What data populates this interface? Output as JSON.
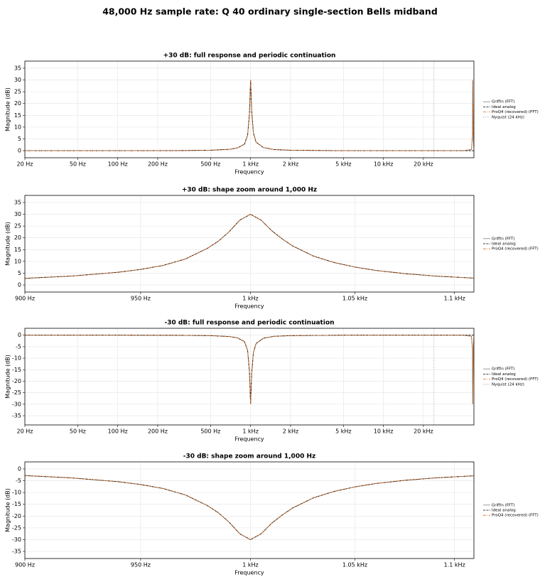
{
  "title": "48,000 Hz sample rate: Q 40 ordinary single-section Bells midband",
  "chart_data": [
    {
      "type": "line",
      "title": "+30 dB: full response and periodic continuation",
      "xlabel": "Frequency",
      "ylabel": "Magnitude (dB)",
      "xscale": "log",
      "grid": true,
      "legend": "outside right",
      "xlim": [
        20,
        48000
      ],
      "xticks": [
        {
          "value": 20,
          "label": "20 Hz"
        },
        {
          "value": 50,
          "label": "50 Hz"
        },
        {
          "value": 100,
          "label": "100 Hz"
        },
        {
          "value": 200,
          "label": "200 Hz"
        },
        {
          "value": 500,
          "label": "500 Hz"
        },
        {
          "value": 1000,
          "label": "1 kHz"
        },
        {
          "value": 2000,
          "label": "2 kHz"
        },
        {
          "value": 5000,
          "label": "5 kHz"
        },
        {
          "value": 10000,
          "label": "10 kHz"
        },
        {
          "value": 20000,
          "label": "20 kHz"
        }
      ],
      "ylim": [
        -3,
        38
      ],
      "yticks": [
        0,
        5,
        10,
        15,
        20,
        25,
        30,
        35
      ],
      "x": [
        20,
        100,
        300,
        500,
        700,
        800,
        900,
        950,
        980,
        990,
        1000,
        1010,
        1020,
        1050,
        1100,
        1250,
        1500,
        2000,
        5000,
        24000,
        40000,
        46000,
        46800,
        47000,
        47500,
        48000
      ],
      "series": [
        {
          "name": "Griffin (FFT)",
          "color": "#7f7f7f",
          "style": "solid",
          "values": [
            0,
            0,
            0.05,
            0.2,
            0.6,
            1.2,
            2.8,
            6.6,
            15.5,
            22.5,
            30,
            23,
            16.5,
            7.6,
            3.6,
            1.3,
            0.5,
            0.2,
            0,
            0,
            0,
            0.5,
            6,
            30,
            5,
            1
          ]
        },
        {
          "name": "Ideal analog",
          "color": "#000000",
          "style": "dashed",
          "values": [
            0,
            0,
            0.05,
            0.2,
            0.6,
            1.2,
            2.8,
            6.6,
            15.5,
            22.5,
            30,
            23,
            16.5,
            7.6,
            3.6,
            1.3,
            0.5,
            0.2,
            0,
            0,
            0,
            0,
            0,
            0,
            0,
            0
          ]
        },
        {
          "name": "ProQ4 (recovered) (FFT)",
          "color": "#d2691e",
          "style": "dashdot",
          "values": [
            0,
            0,
            0.05,
            0.2,
            0.6,
            1.2,
            2.8,
            6.6,
            15.5,
            22.5,
            30,
            23,
            16.5,
            7.6,
            3.6,
            1.3,
            0.5,
            0.2,
            0,
            0,
            0,
            0.5,
            6,
            30,
            5,
            1
          ]
        }
      ],
      "vlines": [
        {
          "name": "Nyquist (24 kHz)",
          "x": 24000,
          "color": "#999999",
          "style": "dotted"
        }
      ]
    },
    {
      "type": "line",
      "title": "+30 dB: shape zoom around 1,000 Hz",
      "xlabel": "Frequency",
      "ylabel": "Magnitude (dB)",
      "xscale": "log",
      "grid": true,
      "legend": "outside right",
      "xlim": [
        900,
        1110
      ],
      "xticks": [
        {
          "value": 900,
          "label": "900 Hz"
        },
        {
          "value": 950,
          "label": "950 Hz"
        },
        {
          "value": 1000,
          "label": "1 kHz"
        },
        {
          "value": 1050,
          "label": "1.05 kHz"
        },
        {
          "value": 1100,
          "label": "1.1 kHz"
        }
      ],
      "ylim": [
        -3,
        38
      ],
      "yticks": [
        0,
        5,
        10,
        15,
        20,
        25,
        30,
        35
      ],
      "x": [
        900,
        920,
        940,
        950,
        960,
        970,
        980,
        985,
        990,
        995,
        1000,
        1005,
        1010,
        1015,
        1020,
        1030,
        1040,
        1050,
        1060,
        1075,
        1090,
        1110
      ],
      "series": [
        {
          "name": "Griffin (FFT)",
          "color": "#7f7f7f",
          "style": "solid",
          "values": [
            2.8,
            3.8,
            5.4,
            6.6,
            8.3,
            11,
            15.5,
            18.5,
            22.5,
            27.5,
            30,
            27.5,
            23,
            19.5,
            16.5,
            12.2,
            9.5,
            7.6,
            6.2,
            4.8,
            3.8,
            2.9
          ]
        },
        {
          "name": "Ideal analog",
          "color": "#000000",
          "style": "dashed",
          "values": [
            2.8,
            3.8,
            5.4,
            6.6,
            8.3,
            11,
            15.5,
            18.5,
            22.5,
            27.5,
            30,
            27.5,
            23,
            19.5,
            16.5,
            12.2,
            9.5,
            7.6,
            6.2,
            4.8,
            3.8,
            2.9
          ]
        },
        {
          "name": "ProQ4 (recovered) (FFT)",
          "color": "#d2691e",
          "style": "dashdot",
          "values": [
            2.8,
            3.8,
            5.4,
            6.6,
            8.3,
            11,
            15.5,
            18.5,
            22.5,
            27.5,
            30,
            27.5,
            23,
            19.5,
            16.5,
            12.2,
            9.5,
            7.6,
            6.2,
            4.8,
            3.8,
            2.9
          ]
        }
      ]
    },
    {
      "type": "line",
      "title": "-30 dB: full response and periodic continuation",
      "xlabel": "Frequency",
      "ylabel": "Magnitude (dB)",
      "xscale": "log",
      "grid": true,
      "legend": "outside right",
      "xlim": [
        20,
        48000
      ],
      "xticks": [
        {
          "value": 20,
          "label": "20 Hz"
        },
        {
          "value": 50,
          "label": "50 Hz"
        },
        {
          "value": 100,
          "label": "100 Hz"
        },
        {
          "value": 200,
          "label": "200 Hz"
        },
        {
          "value": 500,
          "label": "500 Hz"
        },
        {
          "value": 1000,
          "label": "1 kHz"
        },
        {
          "value": 2000,
          "label": "2 kHz"
        },
        {
          "value": 5000,
          "label": "5 kHz"
        },
        {
          "value": 10000,
          "label": "10 kHz"
        },
        {
          "value": 20000,
          "label": "20 kHz"
        }
      ],
      "ylim": [
        -39,
        3
      ],
      "yticks": [
        0,
        -5,
        -10,
        -15,
        -20,
        -25,
        -30,
        -35
      ],
      "x": [
        20,
        100,
        300,
        500,
        700,
        800,
        900,
        950,
        980,
        990,
        1000,
        1010,
        1020,
        1050,
        1100,
        1250,
        1500,
        2000,
        5000,
        24000,
        40000,
        46000,
        46800,
        47000,
        47500,
        48000
      ],
      "series": [
        {
          "name": "Griffin (FFT)",
          "color": "#7f7f7f",
          "style": "solid",
          "values": [
            0,
            0,
            -0.05,
            -0.2,
            -0.6,
            -1.2,
            -2.8,
            -6.6,
            -15.5,
            -22.5,
            -30,
            -23,
            -16.5,
            -7.6,
            -3.6,
            -1.3,
            -0.5,
            -0.2,
            0,
            0,
            0,
            -0.5,
            -6,
            -30,
            -5,
            -1
          ]
        },
        {
          "name": "Ideal analog",
          "color": "#000000",
          "style": "dashed",
          "values": [
            0,
            0,
            -0.05,
            -0.2,
            -0.6,
            -1.2,
            -2.8,
            -6.6,
            -15.5,
            -22.5,
            -30,
            -23,
            -16.5,
            -7.6,
            -3.6,
            -1.3,
            -0.5,
            -0.2,
            0,
            0,
            0,
            0,
            0,
            0,
            0,
            0
          ]
        },
        {
          "name": "ProQ4 (recovered) (FFT)",
          "color": "#d2691e",
          "style": "dashdot",
          "values": [
            0,
            0,
            -0.05,
            -0.2,
            -0.6,
            -1.2,
            -2.8,
            -6.6,
            -15.5,
            -22.5,
            -30,
            -23,
            -16.5,
            -7.6,
            -3.6,
            -1.3,
            -0.5,
            -0.2,
            0,
            0,
            0,
            -0.5,
            -6,
            -30,
            -5,
            -1
          ]
        }
      ],
      "vlines": [
        {
          "name": "Nyquist (24 kHz)",
          "x": 24000,
          "color": "#999999",
          "style": "dotted"
        }
      ]
    },
    {
      "type": "line",
      "title": "-30 dB: shape zoom around 1,000 Hz",
      "xlabel": "Frequency",
      "ylabel": "Magnitude (dB)",
      "xscale": "log",
      "grid": true,
      "legend": "outside right",
      "xlim": [
        900,
        1110
      ],
      "xticks": [
        {
          "value": 900,
          "label": "900 Hz"
        },
        {
          "value": 950,
          "label": "950 Hz"
        },
        {
          "value": 1000,
          "label": "1 kHz"
        },
        {
          "value": 1050,
          "label": "1.05 kHz"
        },
        {
          "value": 1100,
          "label": "1.1 kHz"
        }
      ],
      "ylim": [
        -38,
        3
      ],
      "yticks": [
        0,
        -5,
        -10,
        -15,
        -20,
        -25,
        -30,
        -35
      ],
      "x": [
        900,
        920,
        940,
        950,
        960,
        970,
        980,
        985,
        990,
        995,
        1000,
        1005,
        1010,
        1015,
        1020,
        1030,
        1040,
        1050,
        1060,
        1075,
        1090,
        1110
      ],
      "series": [
        {
          "name": "Griffin (FFT)",
          "color": "#7f7f7f",
          "style": "solid",
          "values": [
            -2.8,
            -3.8,
            -5.4,
            -6.6,
            -8.3,
            -11,
            -15.5,
            -18.5,
            -22.5,
            -27.5,
            -30,
            -27.5,
            -23,
            -19.5,
            -16.5,
            -12.2,
            -9.5,
            -7.6,
            -6.2,
            -4.8,
            -3.8,
            -2.9
          ]
        },
        {
          "name": "Ideal analog",
          "color": "#000000",
          "style": "dashed",
          "values": [
            -2.8,
            -3.8,
            -5.4,
            -6.6,
            -8.3,
            -11,
            -15.5,
            -18.5,
            -22.5,
            -27.5,
            -30,
            -27.5,
            -23,
            -19.5,
            -16.5,
            -12.2,
            -9.5,
            -7.6,
            -6.2,
            -4.8,
            -3.8,
            -2.9
          ]
        },
        {
          "name": "ProQ4 (recovered) (FFT)",
          "color": "#d2691e",
          "style": "dashdot",
          "values": [
            -2.8,
            -3.8,
            -5.4,
            -6.6,
            -8.3,
            -11,
            -15.5,
            -18.5,
            -22.5,
            -27.5,
            -30,
            -27.5,
            -23,
            -19.5,
            -16.5,
            -12.2,
            -9.5,
            -7.6,
            -6.2,
            -4.8,
            -3.8,
            -2.9
          ]
        }
      ]
    }
  ]
}
